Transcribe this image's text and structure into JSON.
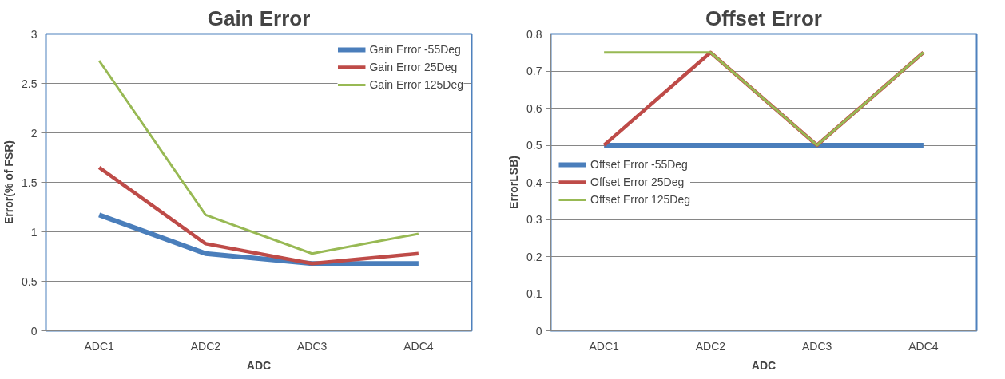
{
  "chart_data": [
    {
      "type": "line",
      "title": "Gain Error",
      "xlabel": "ADC",
      "ylabel": "Error(% of FSR)",
      "categories": [
        "ADC1",
        "ADC2",
        "ADC3",
        "ADC4"
      ],
      "series": [
        {
          "name": "Gain Error -55Deg",
          "color": "#4a7ebb",
          "values": [
            1.17,
            0.78,
            0.68,
            0.68
          ]
        },
        {
          "name": "Gain Error 25Deg",
          "color": "#be4b48",
          "values": [
            1.65,
            0.88,
            0.68,
            0.78
          ]
        },
        {
          "name": "Gain Error 125Deg",
          "color": "#98b954",
          "values": [
            2.73,
            1.17,
            0.78,
            0.98
          ]
        }
      ],
      "ylim": [
        0,
        3
      ],
      "yticks": [
        0,
        0.5,
        1,
        1.5,
        2,
        2.5,
        3
      ],
      "grid": "y",
      "legend": "top right",
      "marker": "none",
      "line_style": "solid"
    },
    {
      "type": "line",
      "title": "Offset Error",
      "xlabel": "ADC",
      "ylabel": "ErrorLSB)",
      "categories": [
        "ADC1",
        "ADC2",
        "ADC3",
        "ADC4"
      ],
      "series": [
        {
          "name": "Offset Error -55Deg",
          "color": "#4a7ebb",
          "values": [
            0.5,
            0.5,
            0.5,
            0.5
          ]
        },
        {
          "name": "Offset Error 25Deg",
          "color": "#be4b48",
          "values": [
            0.5,
            0.75,
            0.5,
            0.75
          ]
        },
        {
          "name": "Offset Error 125Deg",
          "color": "#98b954",
          "values": [
            0.75,
            0.75,
            0.5,
            0.75
          ]
        }
      ],
      "ylim": [
        0,
        0.8
      ],
      "yticks": [
        0,
        0.1,
        0.2,
        0.3,
        0.4,
        0.5,
        0.6,
        0.7,
        0.8
      ],
      "grid": "y",
      "legend": "left",
      "marker": "none",
      "line_style": "solid"
    }
  ]
}
